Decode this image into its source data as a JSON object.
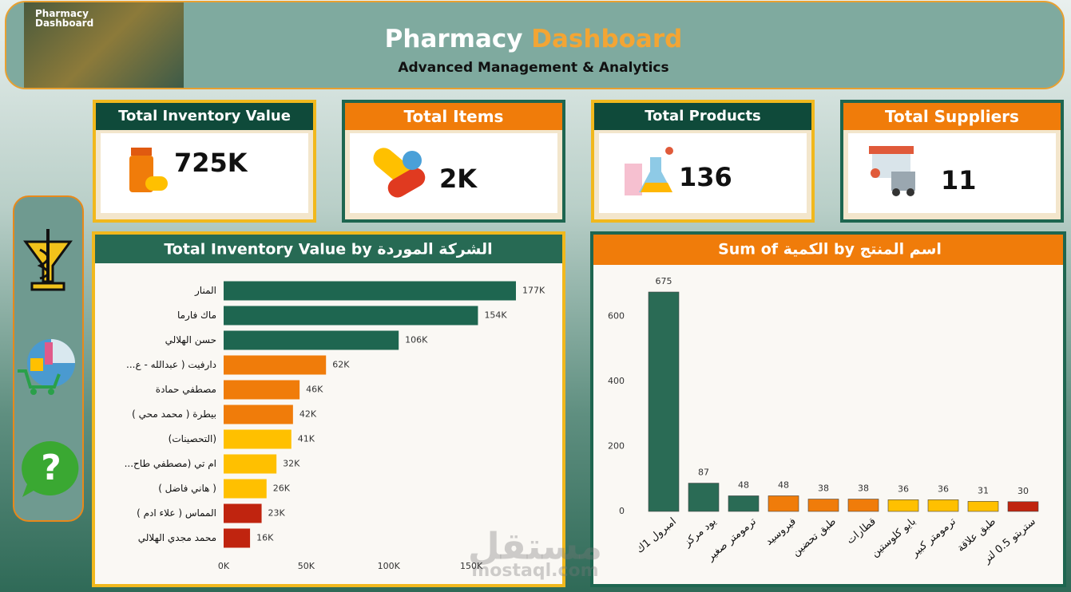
{
  "header": {
    "thumbnail_title": "Pharmacy Dashboard",
    "title_part1": "Pharmacy",
    "title_part2": "Dashboard",
    "subtitle": "Advanced Management & Analytics"
  },
  "kpis": [
    {
      "title": "Total Inventory Value",
      "value": "725K"
    },
    {
      "title": "Total Items",
      "value": "2K"
    },
    {
      "title": "Total Products",
      "value": "136"
    },
    {
      "title": "Total Suppliers",
      "value": "11"
    }
  ],
  "watermark": {
    "arabic": "مستقل",
    "latin": "mostaql.com"
  },
  "chart_data": [
    {
      "type": "hbar",
      "title": "Total Inventory Value by الشركة الموردة",
      "categories": [
        "المنار",
        "ماك فارما",
        "حسن الهلالي",
        "دارفيت ( عبدالله - ع...",
        "مصطفي حمادة",
        "بيطرة ( محمد محي )",
        "(التحصينات)",
        "ام تي (مصطفي طاح...",
        "( هاني فاضل )",
        "المماس ( علاء ادم )",
        "محمد مجدي الهلالي"
      ],
      "values": [
        177000,
        154000,
        106000,
        62000,
        46000,
        42000,
        41000,
        32000,
        26000,
        23000,
        16000
      ],
      "value_labels": [
        "177K",
        "154K",
        "106K",
        "62K",
        "46K",
        "42K",
        "41K",
        "32K",
        "26K",
        "23K",
        "16K"
      ],
      "colors": [
        "#1e6650",
        "#1e6650",
        "#1e6650",
        "#f07c0a",
        "#f07c0a",
        "#f07c0a",
        "#ffc000",
        "#ffc000",
        "#ffc000",
        "#c0240f",
        "#c0240f"
      ],
      "xlim": [
        0,
        177000
      ],
      "xticks": [
        {
          "value": 0,
          "label": "0K"
        },
        {
          "value": 50000,
          "label": "50K"
        },
        {
          "value": 100000,
          "label": "100K"
        },
        {
          "value": 150000,
          "label": "150K"
        }
      ]
    },
    {
      "type": "bar",
      "title": "Sum of الكمية by اسم المنتج",
      "categories": [
        "امبرول 1ك",
        "يود مركز",
        "ترمومتر صغير",
        "فيروسيد",
        "طبق تحضين",
        "قطارات",
        "بايو كلوستين",
        "ترمومتر كبير",
        "طبق علاقة",
        "ستربتو 0.5 لتر"
      ],
      "values": [
        675,
        87,
        48,
        48,
        38,
        38,
        36,
        36,
        31,
        30
      ],
      "colors": [
        "#2a6b55",
        "#2a6b55",
        "#2a6b55",
        "#f07c0a",
        "#f07c0a",
        "#f07c0a",
        "#ffc000",
        "#ffc000",
        "#ffc000",
        "#c0240f"
      ],
      "ylim": [
        0,
        675
      ],
      "yticks": [
        0,
        200,
        400,
        600
      ]
    }
  ]
}
